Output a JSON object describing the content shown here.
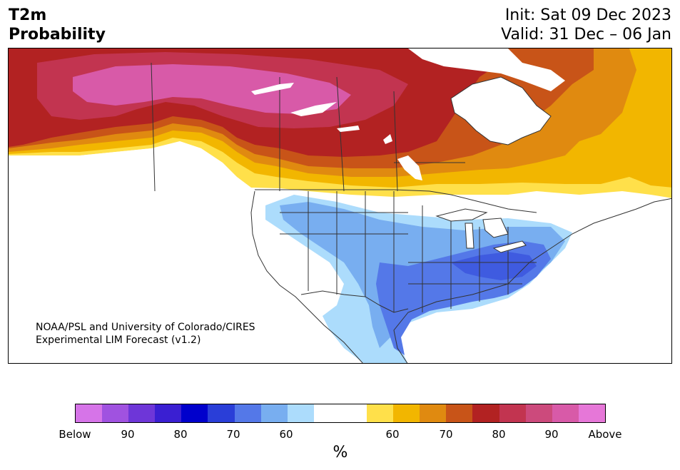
{
  "header": {
    "title_line1": "T2m",
    "title_line2": "Probability",
    "init_text": "Init: Sat 09 Dec 2023",
    "valid_text": "Valid: 31 Dec – 06 Jan"
  },
  "credit": {
    "line1": "NOAA/PSL and University of Colorado/CIRES",
    "line2": "Experimental LIM Forecast (v1.2)"
  },
  "colorbar": {
    "unit": "%",
    "colors": [
      "#d674e8",
      "#a052e0",
      "#6e36d8",
      "#3a1fd2",
      "#0000cc",
      "#2a3ed8",
      "#5478e8",
      "#78aef0",
      "#acdcfc",
      "#ffffff",
      "#ffffff",
      "#ffe04a",
      "#f2b600",
      "#e08a10",
      "#c85418",
      "#b22222",
      "#c23450",
      "#cc4a7c",
      "#d85aa8",
      "#e677d8"
    ],
    "tick_labels": [
      "Below",
      "90",
      "80",
      "70",
      "60",
      "60",
      "70",
      "80",
      "90",
      "Above"
    ]
  },
  "map": {
    "colors": {
      "above_90": "#d85aa8",
      "above_80": "#c23450",
      "above_70": "#b22222",
      "above_65": "#c85418",
      "above_60": "#e08a10",
      "above_55": "#f2b600",
      "above_50": "#ffe04a",
      "below_50": "#acdcfc",
      "below_60": "#78aef0",
      "below_70": "#5478e8",
      "below_75": "#2a3ed8",
      "coast": "#333333",
      "water": "#ffffff"
    }
  }
}
